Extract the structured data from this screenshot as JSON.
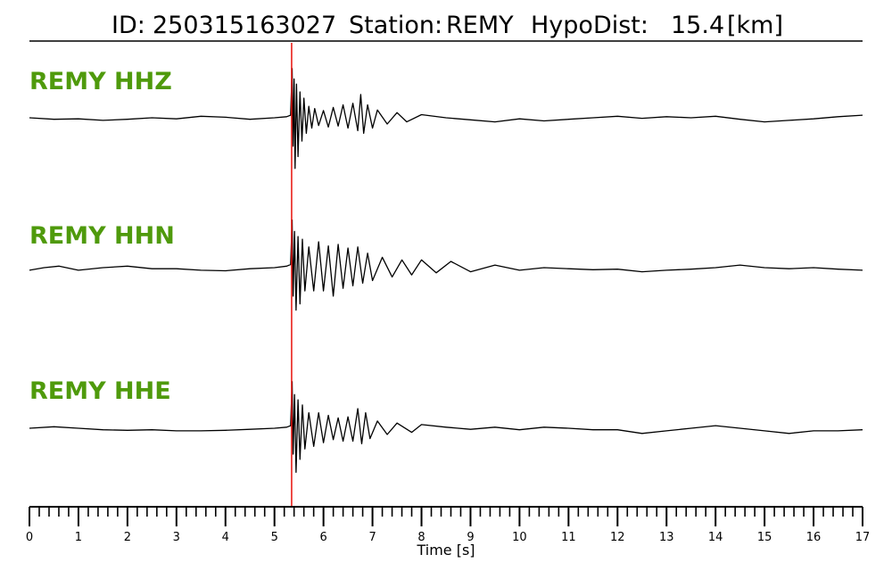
{
  "title": {
    "id_label": "ID:",
    "id_value": "250315163027",
    "station_label": "Station:",
    "station_value": "REMY",
    "hypodist_label": "HypoDist:",
    "hypodist_value": "15.4",
    "hypodist_unit": "[km]"
  },
  "colors": {
    "label": "#4f9a0c",
    "trace": "#000000",
    "pick": "#e8120c",
    "axis": "#000000"
  },
  "chart_data": {
    "type": "line",
    "xlabel": "Time [s]",
    "xlim": [
      0,
      17
    ],
    "x_ticks": [
      0,
      1,
      2,
      3,
      4,
      5,
      6,
      7,
      8,
      9,
      10,
      11,
      12,
      13,
      14,
      15,
      16,
      17
    ],
    "x_tick_labels": [
      "0",
      "1",
      "2",
      "3",
      "4",
      "5",
      "6",
      "7",
      "8",
      "9",
      "10",
      "11",
      "12",
      "13",
      "14",
      "15",
      "16",
      "17"
    ],
    "minor_tick_step": 0.2,
    "pick_time": 5.35,
    "grid": false,
    "series": [
      {
        "name": "REMY HHZ",
        "values": [
          [
            0.0,
            0.0
          ],
          [
            0.5,
            -0.03
          ],
          [
            1.0,
            -0.02
          ],
          [
            1.5,
            -0.05
          ],
          [
            2.0,
            -0.03
          ],
          [
            2.5,
            0.0
          ],
          [
            3.0,
            -0.02
          ],
          [
            3.5,
            0.03
          ],
          [
            4.0,
            0.01
          ],
          [
            4.5,
            -0.03
          ],
          [
            5.0,
            0.0
          ],
          [
            5.25,
            0.02
          ],
          [
            5.33,
            0.05
          ],
          [
            5.36,
            0.95
          ],
          [
            5.38,
            -0.55
          ],
          [
            5.4,
            0.75
          ],
          [
            5.42,
            -0.98
          ],
          [
            5.45,
            0.65
          ],
          [
            5.48,
            -0.75
          ],
          [
            5.52,
            0.5
          ],
          [
            5.56,
            -0.45
          ],
          [
            5.6,
            0.38
          ],
          [
            5.65,
            -0.3
          ],
          [
            5.7,
            0.22
          ],
          [
            5.76,
            -0.2
          ],
          [
            5.82,
            0.18
          ],
          [
            5.9,
            -0.15
          ],
          [
            6.0,
            0.14
          ],
          [
            6.1,
            -0.18
          ],
          [
            6.2,
            0.2
          ],
          [
            6.3,
            -0.16
          ],
          [
            6.4,
            0.25
          ],
          [
            6.5,
            -0.2
          ],
          [
            6.6,
            0.28
          ],
          [
            6.7,
            -0.25
          ],
          [
            6.76,
            0.45
          ],
          [
            6.82,
            -0.3
          ],
          [
            6.9,
            0.25
          ],
          [
            7.0,
            -0.2
          ],
          [
            7.1,
            0.15
          ],
          [
            7.3,
            -0.12
          ],
          [
            7.5,
            0.1
          ],
          [
            7.7,
            -0.08
          ],
          [
            8.0,
            0.06
          ],
          [
            8.5,
            0.0
          ],
          [
            9.0,
            -0.04
          ],
          [
            9.5,
            -0.08
          ],
          [
            10.0,
            -0.02
          ],
          [
            10.5,
            -0.06
          ],
          [
            11.0,
            -0.03
          ],
          [
            11.5,
            0.0
          ],
          [
            12.0,
            0.03
          ],
          [
            12.5,
            -0.01
          ],
          [
            13.0,
            0.02
          ],
          [
            13.5,
            0.0
          ],
          [
            14.0,
            0.03
          ],
          [
            14.5,
            -0.03
          ],
          [
            15.0,
            -0.08
          ],
          [
            15.5,
            -0.05
          ],
          [
            16.0,
            -0.02
          ],
          [
            16.5,
            0.02
          ],
          [
            17.0,
            0.05
          ]
        ]
      },
      {
        "name": "REMY HHN",
        "values": [
          [
            0.0,
            -0.05
          ],
          [
            0.3,
            0.0
          ],
          [
            0.6,
            0.03
          ],
          [
            1.0,
            -0.05
          ],
          [
            1.5,
            0.0
          ],
          [
            2.0,
            0.03
          ],
          [
            2.5,
            -0.02
          ],
          [
            3.0,
            -0.02
          ],
          [
            3.5,
            -0.05
          ],
          [
            4.0,
            -0.06
          ],
          [
            4.5,
            -0.02
          ],
          [
            5.0,
            0.0
          ],
          [
            5.25,
            0.03
          ],
          [
            5.33,
            0.06
          ],
          [
            5.36,
            0.92
          ],
          [
            5.38,
            -0.55
          ],
          [
            5.41,
            0.7
          ],
          [
            5.44,
            -0.82
          ],
          [
            5.48,
            0.6
          ],
          [
            5.52,
            -0.7
          ],
          [
            5.57,
            0.55
          ],
          [
            5.62,
            -0.45
          ],
          [
            5.7,
            0.4
          ],
          [
            5.8,
            -0.45
          ],
          [
            5.9,
            0.5
          ],
          [
            6.0,
            -0.45
          ],
          [
            6.1,
            0.42
          ],
          [
            6.2,
            -0.55
          ],
          [
            6.3,
            0.45
          ],
          [
            6.4,
            -0.4
          ],
          [
            6.5,
            0.38
          ],
          [
            6.6,
            -0.35
          ],
          [
            6.7,
            0.4
          ],
          [
            6.8,
            -0.3
          ],
          [
            6.9,
            0.28
          ],
          [
            7.0,
            -0.25
          ],
          [
            7.2,
            0.2
          ],
          [
            7.4,
            -0.18
          ],
          [
            7.6,
            0.15
          ],
          [
            7.8,
            -0.14
          ],
          [
            8.0,
            0.15
          ],
          [
            8.3,
            -0.1
          ],
          [
            8.6,
            0.12
          ],
          [
            9.0,
            -0.08
          ],
          [
            9.5,
            0.05
          ],
          [
            10.0,
            -0.05
          ],
          [
            10.5,
            0.0
          ],
          [
            11.0,
            -0.02
          ],
          [
            11.5,
            -0.04
          ],
          [
            12.0,
            -0.03
          ],
          [
            12.5,
            -0.08
          ],
          [
            13.0,
            -0.05
          ],
          [
            13.5,
            -0.03
          ],
          [
            14.0,
            0.0
          ],
          [
            14.5,
            0.05
          ],
          [
            15.0,
            0.0
          ],
          [
            15.5,
            -0.02
          ],
          [
            16.0,
            0.0
          ],
          [
            16.5,
            -0.03
          ],
          [
            17.0,
            -0.05
          ]
        ]
      },
      {
        "name": "REMY HHE",
        "values": [
          [
            0.0,
            0.0
          ],
          [
            0.5,
            0.03
          ],
          [
            1.0,
            0.0
          ],
          [
            1.5,
            -0.03
          ],
          [
            2.0,
            -0.04
          ],
          [
            2.5,
            -0.03
          ],
          [
            3.0,
            -0.05
          ],
          [
            3.5,
            -0.05
          ],
          [
            4.0,
            -0.04
          ],
          [
            4.5,
            -0.02
          ],
          [
            5.0,
            0.0
          ],
          [
            5.25,
            0.02
          ],
          [
            5.33,
            0.05
          ],
          [
            5.36,
            0.9
          ],
          [
            5.38,
            -0.5
          ],
          [
            5.41,
            0.65
          ],
          [
            5.44,
            -0.85
          ],
          [
            5.48,
            0.55
          ],
          [
            5.52,
            -0.6
          ],
          [
            5.57,
            0.45
          ],
          [
            5.62,
            -0.4
          ],
          [
            5.7,
            0.3
          ],
          [
            5.8,
            -0.35
          ],
          [
            5.9,
            0.3
          ],
          [
            6.0,
            -0.28
          ],
          [
            6.1,
            0.25
          ],
          [
            6.2,
            -0.22
          ],
          [
            6.3,
            0.2
          ],
          [
            6.4,
            -0.25
          ],
          [
            6.5,
            0.22
          ],
          [
            6.6,
            -0.25
          ],
          [
            6.7,
            0.38
          ],
          [
            6.78,
            -0.3
          ],
          [
            6.86,
            0.3
          ],
          [
            6.95,
            -0.2
          ],
          [
            7.1,
            0.14
          ],
          [
            7.3,
            -0.12
          ],
          [
            7.5,
            0.1
          ],
          [
            7.8,
            -0.08
          ],
          [
            8.0,
            0.07
          ],
          [
            8.5,
            0.02
          ],
          [
            9.0,
            -0.02
          ],
          [
            9.5,
            0.02
          ],
          [
            10.0,
            -0.03
          ],
          [
            10.5,
            0.02
          ],
          [
            11.0,
            0.0
          ],
          [
            11.5,
            -0.03
          ],
          [
            12.0,
            -0.03
          ],
          [
            12.5,
            -0.1
          ],
          [
            13.0,
            -0.05
          ],
          [
            13.5,
            0.0
          ],
          [
            14.0,
            0.05
          ],
          [
            14.5,
            0.0
          ],
          [
            15.0,
            -0.05
          ],
          [
            15.5,
            -0.1
          ],
          [
            16.0,
            -0.05
          ],
          [
            16.5,
            -0.05
          ],
          [
            17.0,
            -0.03
          ]
        ]
      }
    ]
  }
}
